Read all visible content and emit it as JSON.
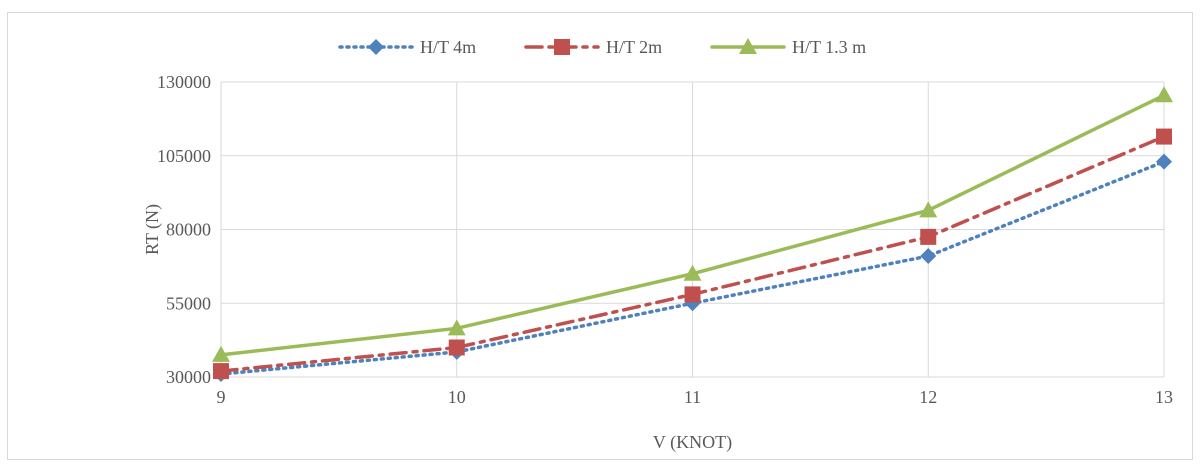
{
  "chart_data": {
    "type": "line",
    "title": "",
    "xlabel": "V (KNOT)",
    "ylabel": "RT (N)",
    "x": [
      9,
      10,
      11,
      12,
      13
    ],
    "xlim": [
      9,
      13
    ],
    "ylim": [
      30000,
      130000
    ],
    "y_ticks": [
      "30000",
      "55000",
      "80000",
      "105000",
      "130000"
    ],
    "x_ticks": [
      "9",
      "10",
      "11",
      "12",
      "13"
    ],
    "grid": true,
    "legend_position": "top",
    "series": [
      {
        "name": "H/T 4m",
        "values": [
          31000,
          38500,
          55000,
          71000,
          103000
        ],
        "color": "#4f81bd",
        "line_style": "dotted",
        "marker": "diamond"
      },
      {
        "name": "H/T 2m",
        "values": [
          32000,
          40000,
          58000,
          77500,
          111500
        ],
        "color": "#c0504d",
        "line_style": "dash-dot",
        "marker": "square"
      },
      {
        "name": "H/T 1.3 m",
        "values": [
          37500,
          46500,
          65000,
          86500,
          125500
        ],
        "color": "#9bbb59",
        "line_style": "solid",
        "marker": "triangle"
      }
    ]
  }
}
